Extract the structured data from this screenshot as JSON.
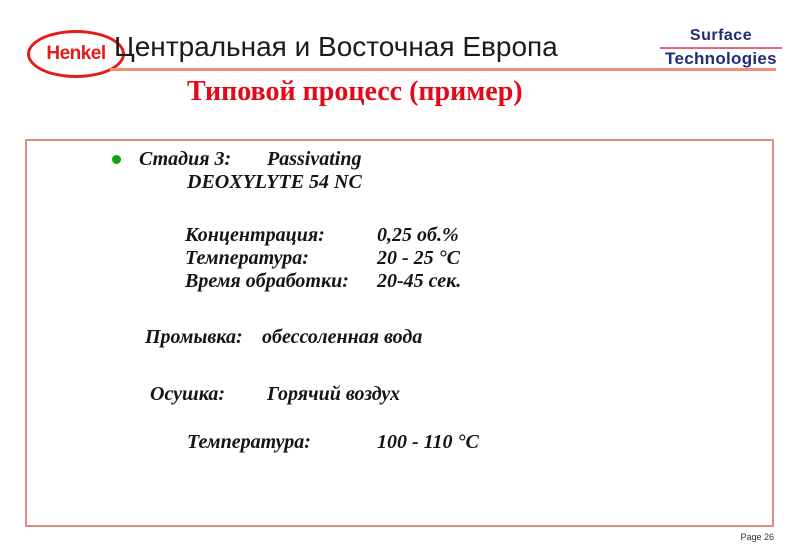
{
  "header": {
    "logo_text": "Henkel",
    "title": "Центральная и Восточная Европа",
    "brand_line1": "Surface",
    "brand_line2": "Technologies"
  },
  "title": {
    "text": "Типовой процесс (пример)"
  },
  "content": {
    "stage": {
      "label": "Стадия 3:",
      "process": "Passivating",
      "product": "DEOXYLYTE 54 NC"
    },
    "parameters": [
      {
        "label": "Концентрация:",
        "value": "0,25 об.%"
      },
      {
        "label": "Температура:",
        "value": "20 - 25 °C"
      },
      {
        "label": "Время обработки:",
        "value": "20-45 сек."
      }
    ],
    "rinse": {
      "label": "Промывка:",
      "value": "обессоленная вода"
    },
    "drying": {
      "label": "Осушка:",
      "value": "Горячий воздух"
    },
    "drying_temp": {
      "label": "Температура:",
      "value": "100 - 110 °C"
    }
  },
  "footer": {
    "page_label": "Page 26"
  },
  "colors": {
    "henkel_red": "#e41b17",
    "title_red": "#e2091a",
    "rule_salmon": "#ef8e75",
    "box_border": "#e08b83",
    "brand_navy": "#1f2d7b",
    "brand_underline_pink": "#e4647b",
    "bullet_green": "#0ca60e"
  }
}
